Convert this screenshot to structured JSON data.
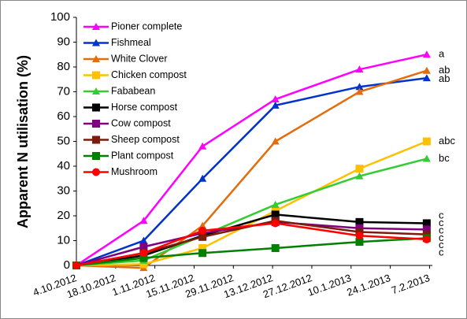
{
  "chart_data": {
    "type": "line",
    "y_label": "Apparent N utilisation (%)",
    "x": [
      "2012-10-04",
      "2012-10-28",
      "2012-11-18",
      "2012-12-14",
      "2013-01-13",
      "2013-02-06"
    ],
    "xlim": [
      "2012-10-04",
      "2013-02-08"
    ],
    "xticks": [
      {
        "value": "2012-10-04",
        "label": "4.10.2012"
      },
      {
        "value": "2012-10-18",
        "label": "18.10.2012"
      },
      {
        "value": "2012-11-01",
        "label": "1.11.2012"
      },
      {
        "value": "2012-11-15",
        "label": "15.11.2012"
      },
      {
        "value": "2012-11-29",
        "label": "29.11.2012"
      },
      {
        "value": "2012-12-13",
        "label": "13.12.2012"
      },
      {
        "value": "2012-12-27",
        "label": "27.12.2012"
      },
      {
        "value": "2013-01-10",
        "label": "10.1.2013"
      },
      {
        "value": "2013-01-24",
        "label": "24.1.2013"
      },
      {
        "value": "2013-02-07",
        "label": "7.2.2013"
      }
    ],
    "ylim": [
      0,
      100
    ],
    "yticks": [
      0,
      10,
      20,
      30,
      40,
      50,
      60,
      70,
      80,
      90,
      100
    ],
    "grid": false,
    "legend": "upper left",
    "series": [
      {
        "name": "Pioner complete",
        "color": "#ff00ff",
        "marker": "triangle",
        "values": [
          0,
          18,
          48,
          67,
          79,
          85
        ]
      },
      {
        "name": "Fishmeal",
        "color": "#0033cc",
        "marker": "triangle",
        "values": [
          0,
          10,
          35,
          64.5,
          72,
          75.5
        ]
      },
      {
        "name": "White Clover",
        "color": "#e46c0a",
        "marker": "triangle",
        "values": [
          0,
          -1,
          16,
          50,
          70,
          78.5
        ]
      },
      {
        "name": "Chicken compost",
        "color": "#ffc000",
        "marker": "square",
        "values": [
          0,
          0.5,
          7,
          22,
          39,
          50
        ]
      },
      {
        "name": "Fababean",
        "color": "#33cc33",
        "marker": "triangle",
        "values": [
          0,
          2,
          12,
          24.5,
          36,
          43
        ]
      },
      {
        "name": "Horse compost",
        "color": "#000000",
        "marker": "square",
        "values": [
          0,
          4,
          12,
          20.5,
          17.5,
          17
        ]
      },
      {
        "name": "Cow compost",
        "color": "#800080",
        "marker": "square",
        "values": [
          0,
          7.5,
          13,
          17.5,
          15,
          14.5
        ]
      },
      {
        "name": "Sheep compost",
        "color": "#7b1c0c",
        "marker": "square",
        "values": [
          0,
          5,
          11.5,
          18,
          13.5,
          12.5
        ]
      },
      {
        "name": "Plant compost",
        "color": "#008000",
        "marker": "square",
        "values": [
          0,
          3,
          5,
          7,
          9.5,
          11
        ]
      },
      {
        "name": "Mushroom",
        "color": "#ff0000",
        "marker": "circle",
        "values": [
          0,
          5,
          14,
          17,
          12,
          10.5
        ]
      }
    ],
    "annotations": [
      {
        "text": "a",
        "y": 85
      },
      {
        "text": "ab",
        "y": 78.5
      },
      {
        "text": "ab",
        "y": 75
      },
      {
        "text": "abc",
        "y": 50
      },
      {
        "text": "bc",
        "y": 43
      },
      {
        "text": "c",
        "y": 20
      },
      {
        "text": "c",
        "y": 17
      },
      {
        "text": "c",
        "y": 14
      },
      {
        "text": "c",
        "y": 11
      },
      {
        "text": "c",
        "y": 8
      },
      {
        "text": "c",
        "y": 5
      }
    ]
  }
}
